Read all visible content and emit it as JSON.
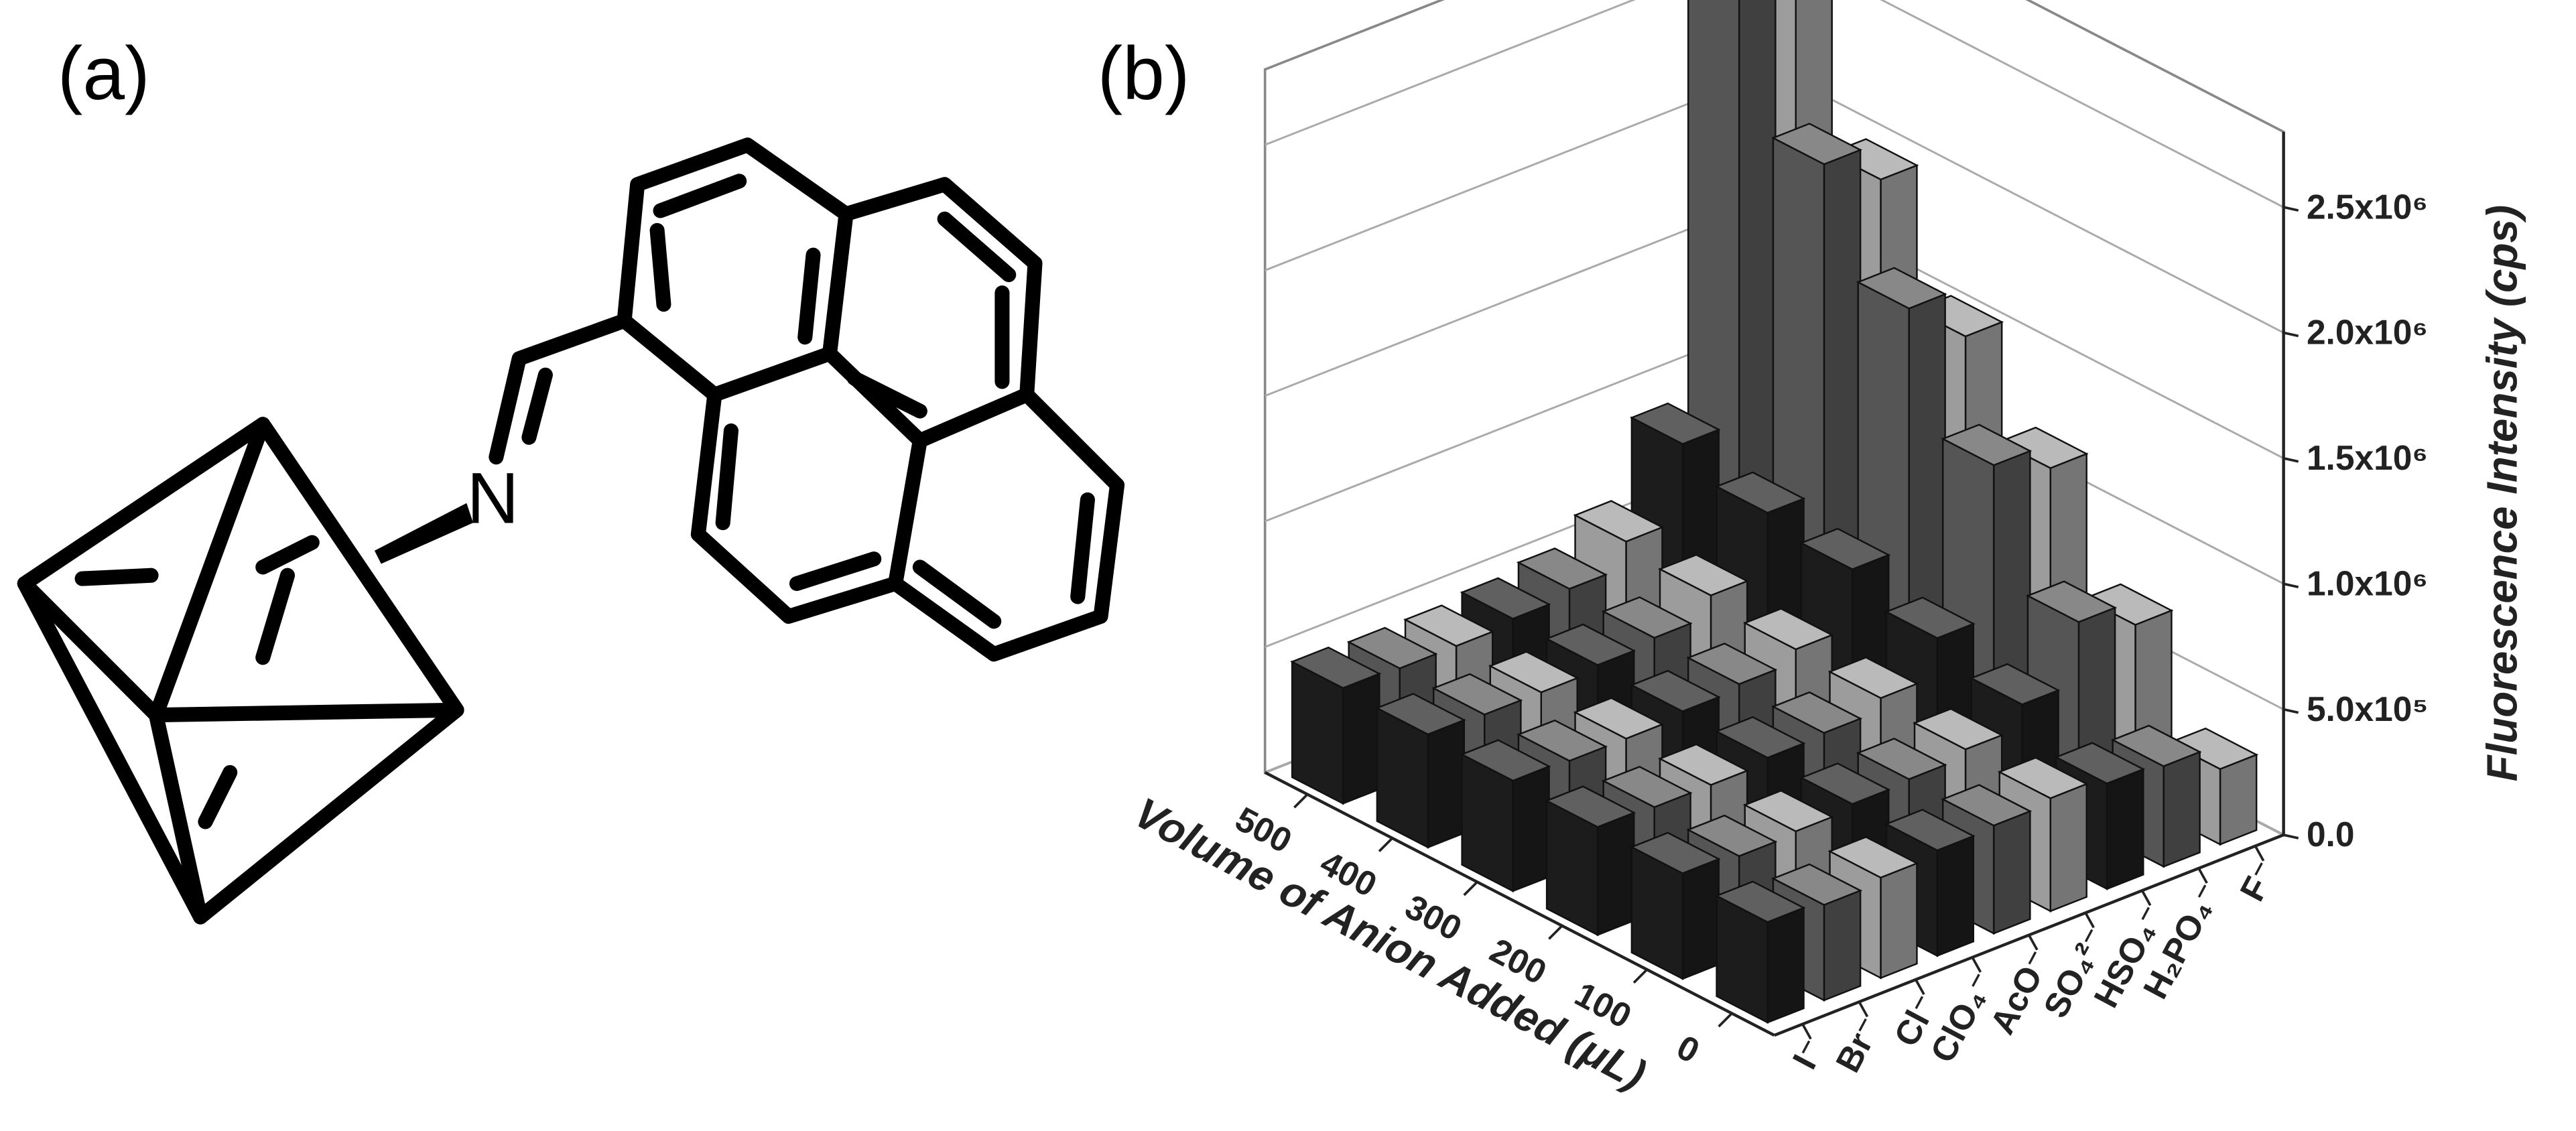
{
  "panel_a": {
    "label": "(a)",
    "atom": "N"
  },
  "panel_b": {
    "label": "(b)"
  },
  "chart_data": {
    "type": "bar3d",
    "xlabel": "Volume of Anion Added (μL)",
    "ylabel": "Fluorescence Intensity (cps)",
    "categories": [
      "I⁻",
      "Br⁻",
      "Cl⁻",
      "ClO₄⁻",
      "AcO⁻",
      "SO₄²⁻",
      "HSO₄⁻",
      "H₂PO₄⁻",
      "F⁻"
    ],
    "x": [
      0,
      100,
      200,
      300,
      400,
      500
    ],
    "values": [
      [
        400000,
        420000,
        430000,
        440000,
        450000,
        460000
      ],
      [
        380000,
        400000,
        420000,
        430000,
        440000,
        450000
      ],
      [
        400000,
        410000,
        420000,
        430000,
        440000,
        450000
      ],
      [
        420000,
        430000,
        440000,
        450000,
        460000,
        470000
      ],
      [
        430000,
        440000,
        450000,
        470000,
        480000,
        500000
      ],
      [
        450000,
        470000,
        500000,
        520000,
        560000,
        600000
      ],
      [
        420000,
        560000,
        650000,
        750000,
        800000,
        900000
      ],
      [
        400000,
        800000,
        1250000,
        1700000,
        2100000,
        2600000
      ],
      [
        300000,
        700000,
        1150000,
        1500000,
        1950000,
        2750000
      ]
    ],
    "colors": [
      "#1c1c1c",
      "#555555",
      "#9c9c9c"
    ],
    "ylim": [
      0,
      2800000
    ],
    "yticks": [
      {
        "value": 0,
        "label": "0.0"
      },
      {
        "value": 500000,
        "label": "5.0x10⁵"
      },
      {
        "value": 1000000,
        "label": "1.0x10⁶"
      },
      {
        "value": 1500000,
        "label": "1.5x10⁶"
      },
      {
        "value": 2000000,
        "label": "2.0x10⁶"
      },
      {
        "value": 2500000,
        "label": "2.5x10⁶"
      }
    ],
    "grid": true
  }
}
